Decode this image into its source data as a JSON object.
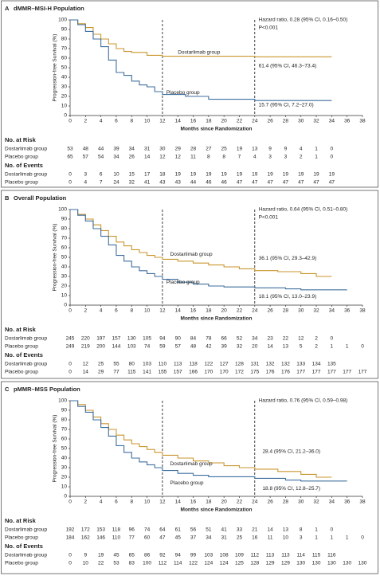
{
  "chart_data": [
    {
      "type": "step",
      "panel": "A",
      "title": "dMMR–MSI-H Population",
      "y_label": "Progression-free Survival (%)",
      "x_label": "Months since Randomization",
      "xlim": [
        0,
        38
      ],
      "xticks": [
        0,
        2,
        4,
        6,
        8,
        10,
        12,
        14,
        16,
        18,
        20,
        22,
        24,
        26,
        28,
        30,
        32,
        34,
        36,
        38
      ],
      "ylim": [
        0,
        100
      ],
      "yticks": [
        0,
        10,
        20,
        30,
        40,
        50,
        60,
        70,
        80,
        90,
        100
      ],
      "reference_lines": [
        12,
        24
      ],
      "hazard_ratio": "Hazard ratio, 0.28 (95% CI, 0.16–0.50)",
      "p_value": "P<0.001",
      "series": [
        {
          "name": "Dostarlimab group",
          "color": "#c9962e",
          "median_label": "61.4 (95% CI, 46.3–73.4)",
          "x": [
            0,
            1,
            2,
            3,
            4,
            5,
            6,
            7,
            8,
            10,
            12,
            24,
            34
          ],
          "values": [
            100,
            96,
            92,
            85,
            80,
            75,
            70,
            67,
            66,
            63,
            62,
            61.4,
            61.4
          ]
        },
        {
          "name": "Placebo group",
          "color": "#3f6f9f",
          "median_label": "15.7 (95% CI, 7.2–27.0)",
          "x": [
            0,
            1,
            2,
            3,
            4,
            5,
            6,
            7,
            8,
            9,
            10,
            11,
            12,
            15,
            18,
            24,
            34
          ],
          "values": [
            100,
            95,
            88,
            80,
            72,
            58,
            45,
            42,
            36,
            32,
            30,
            25,
            22,
            20,
            17,
            15.7,
            15.7
          ]
        }
      ],
      "risk_table": {
        "title": "No. at Risk",
        "rows": [
          {
            "name": "Dostarlimab group",
            "values": [
              53,
              48,
              44,
              39,
              34,
              31,
              30,
              29,
              28,
              27,
              25,
              19,
              13,
              9,
              9,
              4,
              1,
              0
            ]
          },
          {
            "name": "Placebo group",
            "values": [
              65,
              57,
              54,
              34,
              26,
              14,
              12,
              12,
              11,
              8,
              8,
              7,
              4,
              3,
              3,
              2,
              1,
              0
            ]
          }
        ]
      },
      "events_table": {
        "title": "No. of Events",
        "rows": [
          {
            "name": "Dostarlimab group",
            "values": [
              0,
              3,
              6,
              10,
              15,
              17,
              18,
              19,
              19,
              19,
              19,
              19,
              19,
              19,
              19,
              19,
              19,
              19
            ]
          },
          {
            "name": "Placebo group",
            "values": [
              0,
              4,
              7,
              24,
              32,
              41,
              43,
              43,
              44,
              46,
              46,
              47,
              47,
              47,
              47,
              47,
              47,
              47
            ]
          }
        ]
      }
    },
    {
      "type": "step",
      "panel": "B",
      "title": "Overall Population",
      "y_label": "Progression-free Survival (%)",
      "x_label": "Months since Randomization",
      "xlim": [
        0,
        38
      ],
      "xticks": [
        0,
        2,
        4,
        6,
        8,
        10,
        12,
        14,
        16,
        18,
        20,
        22,
        24,
        26,
        28,
        30,
        32,
        34,
        36,
        38
      ],
      "ylim": [
        0,
        100
      ],
      "yticks": [
        0,
        10,
        20,
        30,
        40,
        50,
        60,
        70,
        80,
        90,
        100
      ],
      "reference_lines": [
        12,
        24
      ],
      "hazard_ratio": "Hazard ratio, 0.64 (95% CI, 0.51–0.80)",
      "p_value": "P<0.001",
      "series": [
        {
          "name": "Dostarlimab group",
          "color": "#c9962e",
          "median_label": "36.1 (95% CI, 29.3–42.9)",
          "x": [
            0,
            1,
            2,
            3,
            4,
            5,
            6,
            7,
            8,
            9,
            10,
            11,
            12,
            14,
            16,
            18,
            20,
            22,
            24,
            27,
            30,
            32,
            34
          ],
          "values": [
            100,
            95,
            90,
            84,
            78,
            72,
            66,
            62,
            58,
            55,
            52,
            50,
            48,
            46,
            44,
            42,
            40,
            38,
            36.1,
            35,
            33,
            30,
            30
          ]
        },
        {
          "name": "Placebo group",
          "color": "#3f6f9f",
          "median_label": "18.1 (95% CI, 13.0–23.9)",
          "x": [
            0,
            1,
            2,
            3,
            4,
            5,
            6,
            7,
            8,
            9,
            10,
            11,
            12,
            14,
            16,
            18,
            20,
            24,
            28,
            30,
            36
          ],
          "values": [
            100,
            94,
            88,
            80,
            72,
            63,
            52,
            46,
            40,
            36,
            33,
            30,
            27,
            24,
            22,
            20,
            19,
            18.1,
            17,
            16,
            16
          ]
        }
      ],
      "risk_table": {
        "title": "No. at Risk",
        "rows": [
          {
            "name": "Dostarlimab group",
            "values": [
              245,
              220,
              197,
              157,
              130,
              105,
              94,
              90,
              84,
              78,
              66,
              52,
              34,
              23,
              22,
              12,
              2,
              0
            ]
          },
          {
            "name": "Placebo group",
            "values": [
              249,
              219,
              200,
              144,
              103,
              74,
              59,
              57,
              48,
              42,
              39,
              32,
              20,
              14,
              13,
              5,
              2,
              1,
              1,
              0
            ]
          }
        ]
      },
      "events_table": {
        "title": "No. of Events",
        "rows": [
          {
            "name": "Dostarlimab group",
            "values": [
              0,
              12,
              25,
              55,
              80,
              103,
              110,
              113,
              118,
              122,
              127,
              128,
              131,
              132,
              132,
              133,
              134,
              135
            ]
          },
          {
            "name": "Placebo group",
            "values": [
              0,
              14,
              29,
              77,
              115,
              141,
              155,
              157,
              166,
              170,
              170,
              172,
              175,
              176,
              176,
              177,
              177,
              177,
              177,
              177
            ]
          }
        ]
      }
    },
    {
      "type": "step",
      "panel": "C",
      "title": "pMMR–MSS Population",
      "y_label": "Progression-free Survival (%)",
      "x_label": "Months since Randomization",
      "xlim": [
        0,
        38
      ],
      "xticks": [
        0,
        2,
        4,
        6,
        8,
        10,
        12,
        14,
        16,
        18,
        20,
        22,
        24,
        26,
        28,
        30,
        32,
        34,
        36,
        38
      ],
      "ylim": [
        0,
        100
      ],
      "yticks": [
        0,
        10,
        20,
        30,
        40,
        50,
        60,
        70,
        80,
        90,
        100
      ],
      "reference_lines": [
        12,
        24
      ],
      "hazard_ratio": "Hazard ratio, 0.76 (95% CI, 0.59–0.98)",
      "series": [
        {
          "name": "Dostarlimab group",
          "color": "#c9962e",
          "median_label": "28.4 (95% CI, 21.2–36.0)",
          "x": [
            0,
            1,
            2,
            3,
            4,
            5,
            6,
            7,
            8,
            9,
            10,
            11,
            12,
            14,
            16,
            18,
            20,
            22,
            24,
            27,
            30,
            32,
            34
          ],
          "values": [
            100,
            96,
            90,
            83,
            76,
            70,
            64,
            59,
            55,
            52,
            49,
            46,
            43,
            40,
            37,
            35,
            32,
            30,
            28.4,
            26,
            23,
            20,
            20
          ]
        },
        {
          "name": "Placebo group",
          "color": "#3f6f9f",
          "median_label": "18.8 (95% CI, 12.8–25.7)",
          "x": [
            0,
            1,
            2,
            3,
            4,
            5,
            6,
            7,
            8,
            9,
            10,
            11,
            12,
            14,
            16,
            18,
            24,
            28,
            30,
            36
          ],
          "values": [
            100,
            94,
            88,
            80,
            72,
            63,
            53,
            46,
            40,
            36,
            33,
            30,
            27,
            24,
            22,
            20.5,
            18.8,
            17,
            16,
            16
          ]
        }
      ],
      "risk_table": {
        "title": "No. at Risk",
        "rows": [
          {
            "name": "Dostarlimab group",
            "values": [
              192,
              172,
              153,
              118,
              96,
              74,
              64,
              61,
              56,
              51,
              41,
              33,
              21,
              14,
              13,
              8,
              1,
              0
            ]
          },
          {
            "name": "Placebo group",
            "values": [
              184,
              162,
              146,
              110,
              77,
              60,
              47,
              45,
              37,
              34,
              31,
              25,
              16,
              11,
              10,
              3,
              1,
              1,
              1,
              0
            ]
          }
        ]
      },
      "events_table": {
        "title": "No. of Events",
        "rows": [
          {
            "name": "Dostarlimab group",
            "values": [
              0,
              9,
              19,
              45,
              65,
              86,
              92,
              94,
              99,
              103,
              108,
              109,
              112,
              113,
              113,
              114,
              115,
              116
            ]
          },
          {
            "name": "Placebo group",
            "values": [
              0,
              10,
              22,
              53,
              83,
              100,
              112,
              114,
              122,
              124,
              124,
              125,
              128,
              129,
              129,
              130,
              130,
              130,
              130,
              130
            ]
          }
        ]
      }
    }
  ]
}
